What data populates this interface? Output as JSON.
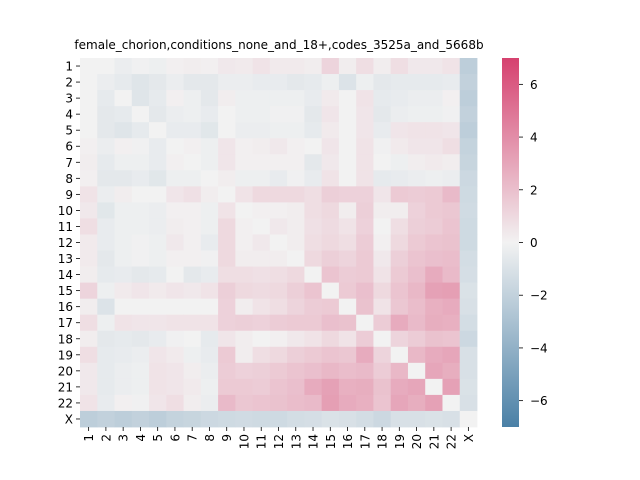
{
  "chart_data": {
    "type": "heatmap",
    "title": "female_chorion,conditions_none_and_18+,codes_3525a_and_5668b",
    "xlabel": "",
    "ylabel": "",
    "labels": [
      "1",
      "2",
      "3",
      "4",
      "5",
      "6",
      "7",
      "8",
      "9",
      "10",
      "11",
      "12",
      "13",
      "14",
      "15",
      "16",
      "17",
      "18",
      "19",
      "20",
      "21",
      "22",
      "X"
    ],
    "colorbar": {
      "min": -7,
      "max": 7,
      "ticks": [
        6,
        4,
        2,
        0,
        -2,
        -4,
        -6
      ],
      "low_color": "#4a80a6",
      "mid_color": "#f2f2f2",
      "high_color": "#d6416f"
    },
    "values": [
      [
        0,
        0,
        -0.3,
        -0.1,
        -0.2,
        0.1,
        0.2,
        0.1,
        0.4,
        0.3,
        0.6,
        0.3,
        0.3,
        0.2,
        1.2,
        0.2,
        0.8,
        0.2,
        0.8,
        0.4,
        0.4,
        0.6,
        -2.2
      ],
      [
        0,
        -0.3,
        -0.5,
        -0.8,
        -0.6,
        -0.3,
        -0.6,
        -0.6,
        -0.3,
        -0.3,
        -0.4,
        -0.4,
        -0.6,
        -0.5,
        -0.2,
        -0.9,
        -0.2,
        -0.6,
        -0.5,
        -0.5,
        -0.5,
        -0.4,
        -2.0
      ],
      [
        0,
        -0.5,
        0,
        -0.8,
        -0.5,
        0.1,
        -0.2,
        -0.6,
        0.2,
        -0.2,
        -0.2,
        -0.2,
        -0.2,
        -0.4,
        0.3,
        0,
        0.6,
        -0.5,
        -0.4,
        -0.3,
        -0.3,
        0.1,
        -2.2
      ],
      [
        0,
        -0.6,
        -0.5,
        0,
        -0.6,
        -0.3,
        -0.2,
        -0.4,
        0,
        -0.2,
        -0.2,
        -0.1,
        -0.1,
        -0.6,
        0.5,
        0,
        0.5,
        -0.6,
        -0.3,
        -0.2,
        -0.2,
        -0.1,
        -2.0
      ],
      [
        0,
        -0.6,
        -0.8,
        -0.5,
        0,
        -0.4,
        -0.4,
        -0.7,
        0,
        -0.3,
        -0.3,
        -0.2,
        -0.2,
        -0.5,
        0.3,
        0,
        0.5,
        -0.4,
        0.5,
        0.6,
        0.6,
        0.5,
        -2.2
      ],
      [
        0.1,
        -0.3,
        0.1,
        -0.1,
        -0.4,
        0,
        0.1,
        -0.2,
        0.5,
        0.1,
        0.2,
        0.4,
        0.1,
        0,
        0.5,
        0,
        0.6,
        -0.1,
        0.3,
        0.5,
        0.5,
        0.8,
        -1.9
      ],
      [
        0.2,
        -0.5,
        -0.2,
        -0.2,
        -0.4,
        0.1,
        0,
        -0.2,
        0.5,
        0.1,
        0.1,
        0.1,
        0.1,
        -0.6,
        0.4,
        0,
        0.6,
        0,
        -0.2,
        0.2,
        0.3,
        0.2,
        -1.8
      ],
      [
        0.1,
        -0.6,
        -0.6,
        -0.4,
        -0.7,
        -0.2,
        -0.2,
        0,
        0.2,
        -0.2,
        -0.2,
        -0.4,
        -0.1,
        -0.4,
        0.6,
        0,
        0.6,
        -0.5,
        -0.4,
        -0.3,
        -0.2,
        -0.3,
        -1.6
      ],
      [
        0.6,
        -0.3,
        0.2,
        0,
        0,
        0.5,
        0.7,
        0.2,
        0,
        0.6,
        1.0,
        1.0,
        1.0,
        0.8,
        1.4,
        1.3,
        1.3,
        0.5,
        1.6,
        1.5,
        1.6,
        2.2,
        -1.5
      ],
      [
        0.4,
        -0.7,
        -0.2,
        -0.2,
        -0.3,
        0.1,
        0.1,
        -0.2,
        0.6,
        0,
        0.1,
        0.1,
        0.2,
        0.8,
        1.0,
        0.2,
        1.4,
        0.2,
        0.2,
        1.3,
        1.6,
        1.7,
        -1.4
      ],
      [
        0.8,
        -0.4,
        -0.2,
        -0.2,
        -0.3,
        0.2,
        0.1,
        -0.2,
        1.0,
        0.1,
        0,
        0.4,
        0.2,
        0.7,
        0.9,
        0.6,
        1.3,
        0,
        0.8,
        1.4,
        1.5,
        1.8,
        -1.5
      ],
      [
        0.3,
        -0.4,
        -0.2,
        -0.1,
        -0.2,
        0.4,
        0.1,
        -0.4,
        1.0,
        0.1,
        0.4,
        0,
        0.2,
        0.8,
        1.0,
        0.8,
        1.5,
        0.1,
        1.0,
        1.6,
        1.8,
        1.9,
        -1.5
      ],
      [
        0.3,
        -0.6,
        -0.2,
        -0.1,
        -0.2,
        0.1,
        0.1,
        -0.1,
        1.0,
        0.2,
        0.2,
        0.2,
        0,
        1.0,
        1.4,
        1.2,
        1.6,
        0.4,
        1.4,
        1.8,
        2.0,
        2.1,
        -1.3
      ],
      [
        0.2,
        -0.5,
        -0.4,
        -0.6,
        -0.5,
        0,
        -0.6,
        -0.4,
        0.8,
        0.8,
        0.7,
        0.8,
        1.0,
        0,
        1.8,
        1.5,
        1.6,
        0.6,
        1.6,
        2.0,
        2.8,
        2.2,
        -1.2
      ],
      [
        1.2,
        -0.2,
        0.3,
        0.5,
        0.3,
        0.5,
        0.4,
        0.6,
        1.4,
        1.0,
        0.9,
        1.0,
        1.4,
        1.8,
        0,
        1.6,
        2.0,
        1.0,
        1.8,
        2.3,
        3.2,
        3.3,
        -1.0
      ],
      [
        0.2,
        -0.9,
        0,
        0,
        0,
        0,
        0,
        0,
        1.3,
        0.2,
        0.6,
        0.8,
        1.2,
        1.5,
        1.6,
        0,
        1.9,
        0.6,
        1.7,
        2.1,
        2.6,
        2.8,
        -1.1
      ],
      [
        0.8,
        -0.2,
        0.6,
        0.5,
        0.5,
        0.6,
        0.6,
        0.6,
        1.3,
        1.4,
        1.3,
        1.5,
        1.6,
        1.6,
        2.0,
        1.9,
        0,
        1.5,
        2.8,
        2.2,
        2.7,
        2.6,
        -1.3
      ],
      [
        0.2,
        -0.6,
        -0.5,
        -0.6,
        -0.4,
        -0.1,
        0,
        -0.5,
        0.5,
        0.2,
        0,
        0.1,
        0.4,
        0.6,
        1.0,
        0.6,
        1.5,
        0,
        1.2,
        1.5,
        1.9,
        1.8,
        -1.6
      ],
      [
        0.8,
        -0.5,
        -0.4,
        -0.3,
        0.5,
        0.3,
        -0.2,
        -0.4,
        1.6,
        0.2,
        0.8,
        1.0,
        1.4,
        1.6,
        1.8,
        1.7,
        2.8,
        1.2,
        0,
        2.3,
        2.8,
        3.0,
        -1.1
      ],
      [
        0.4,
        -0.5,
        -0.3,
        -0.2,
        0.6,
        0.5,
        0.2,
        -0.3,
        1.5,
        1.3,
        1.4,
        1.6,
        1.8,
        2.0,
        2.3,
        2.1,
        2.2,
        1.5,
        2.3,
        0,
        3.0,
        2.7,
        -1.1
      ],
      [
        0.4,
        -0.5,
        -0.3,
        -0.2,
        0.6,
        0.5,
        0.3,
        -0.2,
        1.6,
        1.6,
        1.5,
        1.8,
        2.0,
        2.8,
        3.2,
        2.6,
        2.7,
        1.9,
        2.8,
        3.0,
        0,
        3.2,
        -1.0
      ],
      [
        0.6,
        -0.4,
        0.1,
        -0.1,
        0.5,
        0.8,
        0.2,
        -0.3,
        2.2,
        1.7,
        1.8,
        1.9,
        2.1,
        2.2,
        3.3,
        2.8,
        2.6,
        1.8,
        3.0,
        2.7,
        3.2,
        0,
        -1.1
      ],
      [
        -2.2,
        -2.0,
        -2.2,
        -2.0,
        -2.2,
        -1.9,
        -1.8,
        -1.6,
        -1.5,
        -1.4,
        -1.5,
        -1.5,
        -1.3,
        -1.2,
        -1.0,
        -1.1,
        -1.3,
        -1.6,
        -1.1,
        -1.1,
        -1.0,
        -1.1,
        0
      ]
    ]
  }
}
